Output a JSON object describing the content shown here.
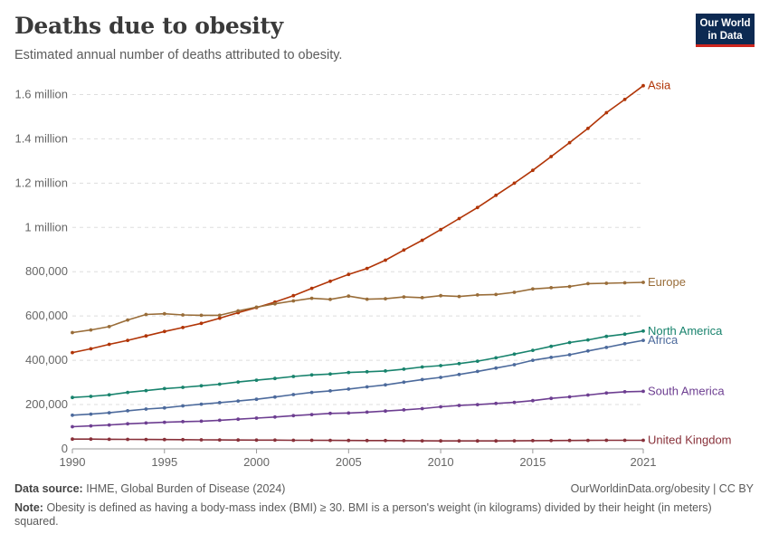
{
  "header": {
    "title": "Deaths due to obesity",
    "subtitle": "Estimated annual number of deaths attributed to obesity."
  },
  "logo": {
    "line1": "Our World",
    "line2": "in Data"
  },
  "footer": {
    "source_label": "Data source:",
    "source_text": "IHME, Global Burden of Disease (2024)",
    "credit": "OurWorldinData.org/obesity | CC BY",
    "note_label": "Note:",
    "note_text": "Obesity is defined as having a body-mass index (BMI) ≥ 30. BMI is a person's weight (in kilograms) divided by their height (in meters) squared."
  },
  "chart_data": {
    "type": "line",
    "title": "Deaths due to obesity",
    "subtitle": "Estimated annual number of deaths attributed to obesity.",
    "xlabel": "",
    "ylabel": "",
    "xlim": [
      1990,
      2021
    ],
    "ylim": [
      0,
      1700000
    ],
    "grid": "horizontal dashed",
    "legend": "inline labels at right end of lines",
    "x_ticks": [
      1990,
      1995,
      2000,
      2005,
      2010,
      2015,
      2021
    ],
    "y_ticks": [
      {
        "value": 0,
        "label": "0"
      },
      {
        "value": 200000,
        "label": "200,000"
      },
      {
        "value": 400000,
        "label": "400,000"
      },
      {
        "value": 600000,
        "label": "600,000"
      },
      {
        "value": 800000,
        "label": "800,000"
      },
      {
        "value": 1000000,
        "label": "1 million"
      },
      {
        "value": 1200000,
        "label": "1.2 million"
      },
      {
        "value": 1400000,
        "label": "1.4 million"
      },
      {
        "value": 1600000,
        "label": "1.6 million"
      }
    ],
    "x": [
      1990,
      1991,
      1992,
      1993,
      1994,
      1995,
      1996,
      1997,
      1998,
      1999,
      2000,
      2001,
      2002,
      2003,
      2004,
      2005,
      2006,
      2007,
      2008,
      2009,
      2010,
      2011,
      2012,
      2013,
      2014,
      2015,
      2016,
      2017,
      2018,
      2019,
      2020,
      2021
    ],
    "series": [
      {
        "name": "Asia",
        "color": "#b13507",
        "values": [
          435000,
          452000,
          472000,
          490000,
          510000,
          530000,
          548000,
          567000,
          590000,
          615000,
          638000,
          663000,
          692000,
          725000,
          757000,
          788000,
          815000,
          852000,
          898000,
          942000,
          990000,
          1040000,
          1090000,
          1145000,
          1200000,
          1258000,
          1320000,
          1383000,
          1447000,
          1518000,
          1578000,
          1640000
        ]
      },
      {
        "name": "Europe",
        "color": "#996d39",
        "values": [
          525000,
          537000,
          552000,
          582000,
          607000,
          610000,
          605000,
          603000,
          603000,
          623000,
          640000,
          655000,
          668000,
          680000,
          675000,
          690000,
          676000,
          678000,
          686000,
          683000,
          692000,
          688000,
          695000,
          697000,
          707000,
          722000,
          728000,
          733000,
          746000,
          748000,
          750000,
          752000
        ]
      },
      {
        "name": "North America",
        "color": "#18836d",
        "values": [
          232000,
          237000,
          244000,
          255000,
          263000,
          272000,
          278000,
          285000,
          292000,
          302000,
          310000,
          318000,
          327000,
          334000,
          338000,
          345000,
          348000,
          352000,
          360000,
          370000,
          376000,
          385000,
          396000,
          411000,
          428000,
          445000,
          463000,
          480000,
          492000,
          508000,
          518000,
          532000
        ]
      },
      {
        "name": "Africa",
        "color": "#4c6a9c",
        "values": [
          152000,
          157000,
          163000,
          172000,
          180000,
          185000,
          194000,
          202000,
          209000,
          216000,
          224000,
          234000,
          245000,
          255000,
          262000,
          270000,
          280000,
          289000,
          301000,
          313000,
          323000,
          336000,
          350000,
          365000,
          380000,
          400000,
          413000,
          425000,
          442000,
          458000,
          475000,
          490000
        ]
      },
      {
        "name": "South America",
        "color": "#6d3e91",
        "values": [
          100000,
          104000,
          108000,
          113000,
          117000,
          120000,
          123000,
          125000,
          129000,
          134000,
          139000,
          144000,
          150000,
          155000,
          160000,
          162000,
          166000,
          171000,
          176000,
          182000,
          190000,
          196000,
          200000,
          205000,
          210000,
          218000,
          228000,
          235000,
          243000,
          252000,
          258000,
          260000
        ]
      },
      {
        "name": "United Kingdom",
        "color": "#883039",
        "values": [
          44000,
          44000,
          43500,
          43000,
          42500,
          42000,
          41500,
          41000,
          40500,
          40000,
          39500,
          39500,
          39000,
          39000,
          38500,
          38000,
          37500,
          37500,
          37000,
          36500,
          36000,
          36000,
          36000,
          36000,
          36500,
          37000,
          37500,
          38000,
          38500,
          39000,
          39000,
          39000
        ]
      }
    ]
  }
}
